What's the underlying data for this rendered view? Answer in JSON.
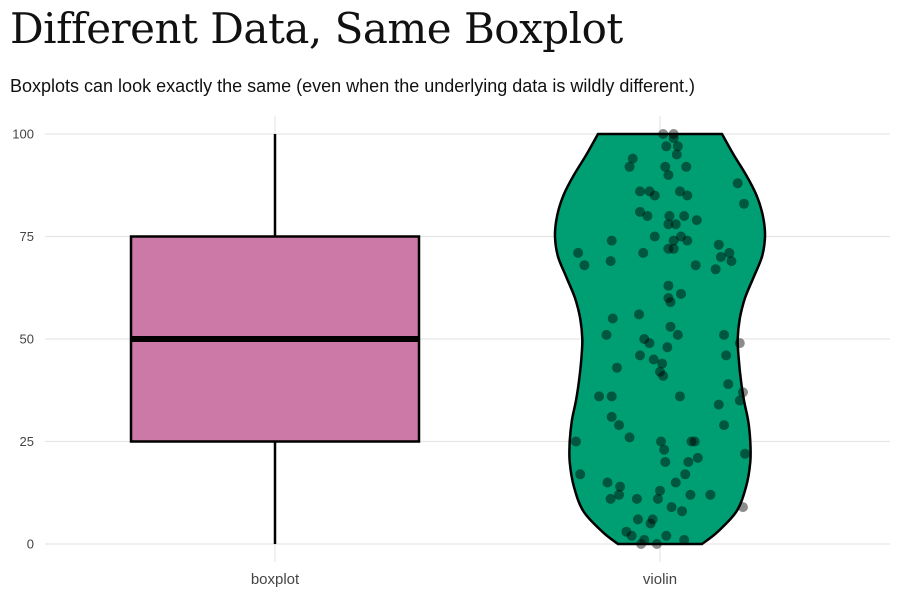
{
  "title": "Different Data, Same Boxplot",
  "subtitle": "Boxplots can look exactly the same (even when the underlying data is wildly different.)",
  "chart_data": {
    "type": "boxplot+violin",
    "categories": [
      "boxplot",
      "violin"
    ],
    "ylim": [
      0,
      100
    ],
    "y_ticks": [
      0,
      25,
      50,
      75,
      100
    ],
    "grid": true,
    "legend": "none",
    "boxplot": {
      "min": 0,
      "q1": 25,
      "median": 50,
      "q3": 75,
      "max": 100,
      "color": "#cc79a7"
    },
    "violin": {
      "color": "#009e73",
      "density_profile": [
        [
          0,
          0.4
        ],
        [
          3,
          0.55
        ],
        [
          8,
          0.73
        ],
        [
          14,
          0.82
        ],
        [
          20,
          0.86
        ],
        [
          25,
          0.86
        ],
        [
          30,
          0.84
        ],
        [
          35,
          0.8
        ],
        [
          40,
          0.77
        ],
        [
          45,
          0.75
        ],
        [
          50,
          0.74
        ],
        [
          55,
          0.76
        ],
        [
          60,
          0.81
        ],
        [
          65,
          0.89
        ],
        [
          70,
          0.97
        ],
        [
          75,
          1.0
        ],
        [
          80,
          0.98
        ],
        [
          85,
          0.92
        ],
        [
          90,
          0.82
        ],
        [
          95,
          0.7
        ],
        [
          100,
          0.59
        ]
      ],
      "points": [
        {
          "dx": 0.03,
          "y": 100
        },
        {
          "dx": 0.13,
          "y": 100
        },
        {
          "dx": 0.13,
          "y": 99
        },
        {
          "dx": 0.06,
          "y": 97
        },
        {
          "dx": 0.17,
          "y": 97
        },
        {
          "dx": 0.16,
          "y": 95
        },
        {
          "dx": -0.26,
          "y": 94
        },
        {
          "dx": -0.29,
          "y": 92
        },
        {
          "dx": 0.05,
          "y": 92
        },
        {
          "dx": 0.25,
          "y": 92
        },
        {
          "dx": 0.08,
          "y": 90
        },
        {
          "dx": 0.74,
          "y": 88
        },
        {
          "dx": -0.19,
          "y": 86
        },
        {
          "dx": -0.1,
          "y": 86
        },
        {
          "dx": -0.05,
          "y": 85
        },
        {
          "dx": 0.19,
          "y": 86
        },
        {
          "dx": 0.26,
          "y": 85
        },
        {
          "dx": 0.8,
          "y": 83
        },
        {
          "dx": -0.19,
          "y": 81
        },
        {
          "dx": -0.12,
          "y": 80
        },
        {
          "dx": 0.09,
          "y": 80
        },
        {
          "dx": 0.23,
          "y": 80
        },
        {
          "dx": 0.35,
          "y": 79
        },
        {
          "dx": 0.08,
          "y": 78
        },
        {
          "dx": 0.15,
          "y": 78
        },
        {
          "dx": -0.05,
          "y": 75
        },
        {
          "dx": 0.2,
          "y": 75
        },
        {
          "dx": 0.26,
          "y": 74
        },
        {
          "dx": -0.46,
          "y": 74
        },
        {
          "dx": 0.13,
          "y": 74
        },
        {
          "dx": 0.13,
          "y": 72
        },
        {
          "dx": 0.56,
          "y": 73
        },
        {
          "dx": 0.08,
          "y": 72
        },
        {
          "dx": 0.66,
          "y": 71
        },
        {
          "dx": -0.78,
          "y": 71
        },
        {
          "dx": -0.47,
          "y": 69
        },
        {
          "dx": -0.16,
          "y": 71
        },
        {
          "dx": 0.58,
          "y": 70
        },
        {
          "dx": 0.68,
          "y": 69
        },
        {
          "dx": -0.72,
          "y": 68
        },
        {
          "dx": 0.34,
          "y": 68
        },
        {
          "dx": 0.53,
          "y": 67
        },
        {
          "dx": 0.08,
          "y": 63
        },
        {
          "dx": 0.2,
          "y": 61
        },
        {
          "dx": 0.08,
          "y": 60
        },
        {
          "dx": 0.1,
          "y": 59
        },
        {
          "dx": -0.2,
          "y": 56
        },
        {
          "dx": -0.45,
          "y": 55
        },
        {
          "dx": 0.1,
          "y": 53
        },
        {
          "dx": -0.51,
          "y": 51
        },
        {
          "dx": 0.17,
          "y": 51
        },
        {
          "dx": 0.61,
          "y": 51
        },
        {
          "dx": -0.15,
          "y": 50
        },
        {
          "dx": -0.1,
          "y": 49
        },
        {
          "dx": 0.76,
          "y": 49
        },
        {
          "dx": 0.07,
          "y": 48
        },
        {
          "dx": -0.19,
          "y": 46
        },
        {
          "dx": -0.06,
          "y": 45
        },
        {
          "dx": 0.63,
          "y": 46
        },
        {
          "dx": 0.02,
          "y": 44
        },
        {
          "dx": -0.41,
          "y": 43
        },
        {
          "dx": 0.0,
          "y": 42
        },
        {
          "dx": 0.03,
          "y": 41
        },
        {
          "dx": 0.65,
          "y": 39
        },
        {
          "dx": 0.79,
          "y": 37
        },
        {
          "dx": -0.58,
          "y": 36
        },
        {
          "dx": 0.19,
          "y": 36
        },
        {
          "dx": -0.46,
          "y": 36
        },
        {
          "dx": 0.76,
          "y": 35
        },
        {
          "dx": 0.56,
          "y": 34
        },
        {
          "dx": -0.46,
          "y": 31
        },
        {
          "dx": -0.39,
          "y": 29
        },
        {
          "dx": 0.61,
          "y": 29
        },
        {
          "dx": -0.29,
          "y": 26
        },
        {
          "dx": -0.8,
          "y": 25
        },
        {
          "dx": 0.01,
          "y": 25
        },
        {
          "dx": 0.3,
          "y": 25
        },
        {
          "dx": 0.33,
          "y": 25
        },
        {
          "dx": 0.04,
          "y": 23
        },
        {
          "dx": 0.81,
          "y": 22
        },
        {
          "dx": 0.36,
          "y": 21
        },
        {
          "dx": 0.27,
          "y": 20
        },
        {
          "dx": 0.05,
          "y": 20
        },
        {
          "dx": 0.24,
          "y": 17
        },
        {
          "dx": -0.76,
          "y": 17
        },
        {
          "dx": 0.15,
          "y": 15
        },
        {
          "dx": -0.5,
          "y": 15
        },
        {
          "dx": -0.38,
          "y": 14
        },
        {
          "dx": -0.47,
          "y": 11
        },
        {
          "dx": -0.39,
          "y": 12
        },
        {
          "dx": -0.22,
          "y": 11
        },
        {
          "dx": -0.02,
          "y": 11
        },
        {
          "dx": 0.0,
          "y": 13
        },
        {
          "dx": 0.29,
          "y": 12
        },
        {
          "dx": 0.48,
          "y": 12
        },
        {
          "dx": 0.11,
          "y": 9
        },
        {
          "dx": 0.21,
          "y": 8
        },
        {
          "dx": 0.79,
          "y": 9
        },
        {
          "dx": -0.21,
          "y": 6
        },
        {
          "dx": -0.07,
          "y": 6
        },
        {
          "dx": -0.09,
          "y": 5
        },
        {
          "dx": -0.32,
          "y": 3
        },
        {
          "dx": -0.27,
          "y": 2
        },
        {
          "dx": -0.15,
          "y": 1
        },
        {
          "dx": 0.06,
          "y": 2
        },
        {
          "dx": 0.23,
          "y": 1
        },
        {
          "dx": -0.03,
          "y": 0
        },
        {
          "dx": -0.18,
          "y": 0
        }
      ]
    }
  }
}
